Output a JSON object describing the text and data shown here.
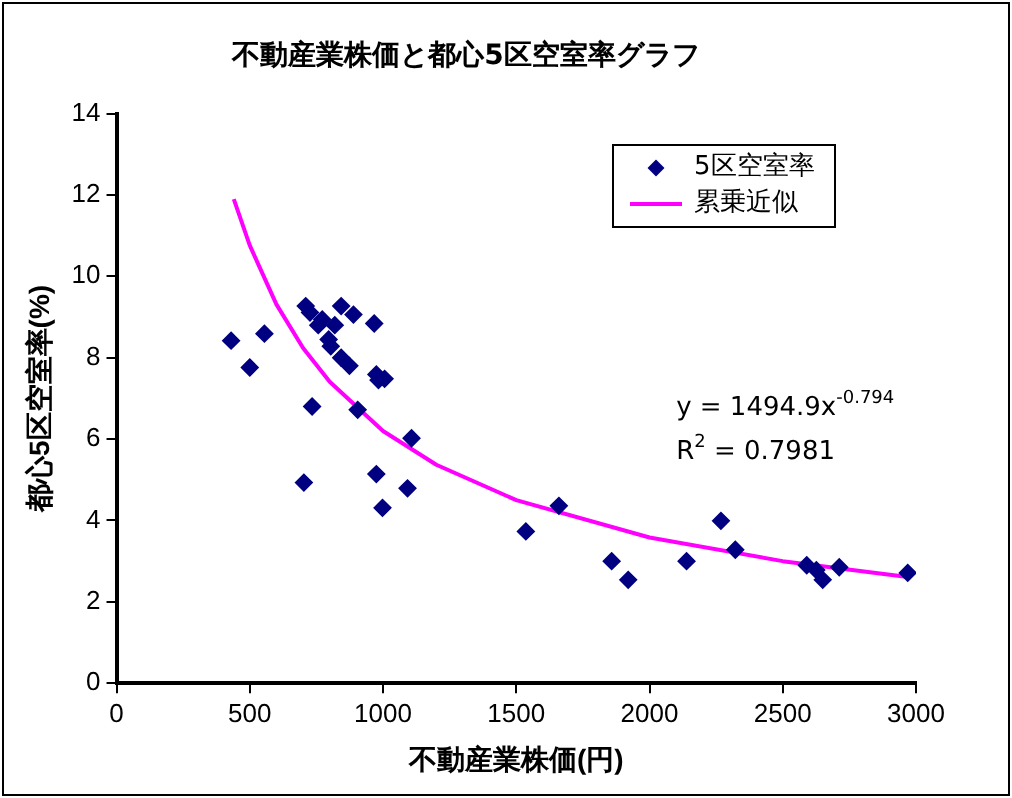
{
  "chart_data": {
    "type": "scatter",
    "title": "不動産業株価と都心5区空室率グラフ",
    "xlabel": "不動産業株価(円)",
    "ylabel": "都心5区空室率(%)",
    "xlim": [
      0,
      3000
    ],
    "xticks": [
      0,
      500,
      1000,
      1500,
      2000,
      2500,
      3000
    ],
    "ylim": [
      0,
      14
    ],
    "yticks": [
      0,
      2,
      4,
      6,
      8,
      10,
      12,
      14
    ],
    "grid": false,
    "legend": "top right",
    "marker": "diamond",
    "annotations": [
      "y = 1494.9x$^{-0.794}$",
      "R$^{2}$ = 0.7981"
    ],
    "series": [
      {
        "name": "5区空室率",
        "color": "#000080",
        "x": [
          430,
          500,
          555,
          710,
          726,
          757,
          772,
          796,
          804,
          819,
          843,
          843,
          874,
          889,
          967,
          975,
          983,
          1006,
          734,
          905,
          1107,
          703,
          975,
          1092,
          998,
          1536,
          1660,
          1858,
          1920,
          2139,
          2268,
          2322,
          2590,
          2626,
          2650,
          2712,
          2969
        ],
        "values": [
          8.42,
          7.76,
          8.59,
          9.27,
          9.11,
          8.8,
          8.94,
          8.45,
          8.28,
          8.8,
          9.27,
          8.0,
          7.8,
          9.06,
          8.84,
          7.59,
          7.45,
          7.48,
          6.8,
          6.72,
          6.02,
          4.93,
          5.14,
          4.79,
          4.31,
          3.73,
          4.36,
          3.0,
          2.54,
          3.0,
          3.99,
          3.28,
          2.9,
          2.78,
          2.54,
          2.85,
          2.71
        ]
      },
      {
        "name": "累乗近似",
        "color": "#ff00ff",
        "type": "line",
        "marker": "none",
        "x": [
          440,
          500,
          600,
          700,
          800,
          1000,
          1200,
          1500,
          2000,
          2500,
          2969
        ],
        "values": [
          11.9,
          10.76,
          9.31,
          8.24,
          7.41,
          6.2,
          5.37,
          4.5,
          3.58,
          3.0,
          2.61
        ]
      }
    ]
  }
}
